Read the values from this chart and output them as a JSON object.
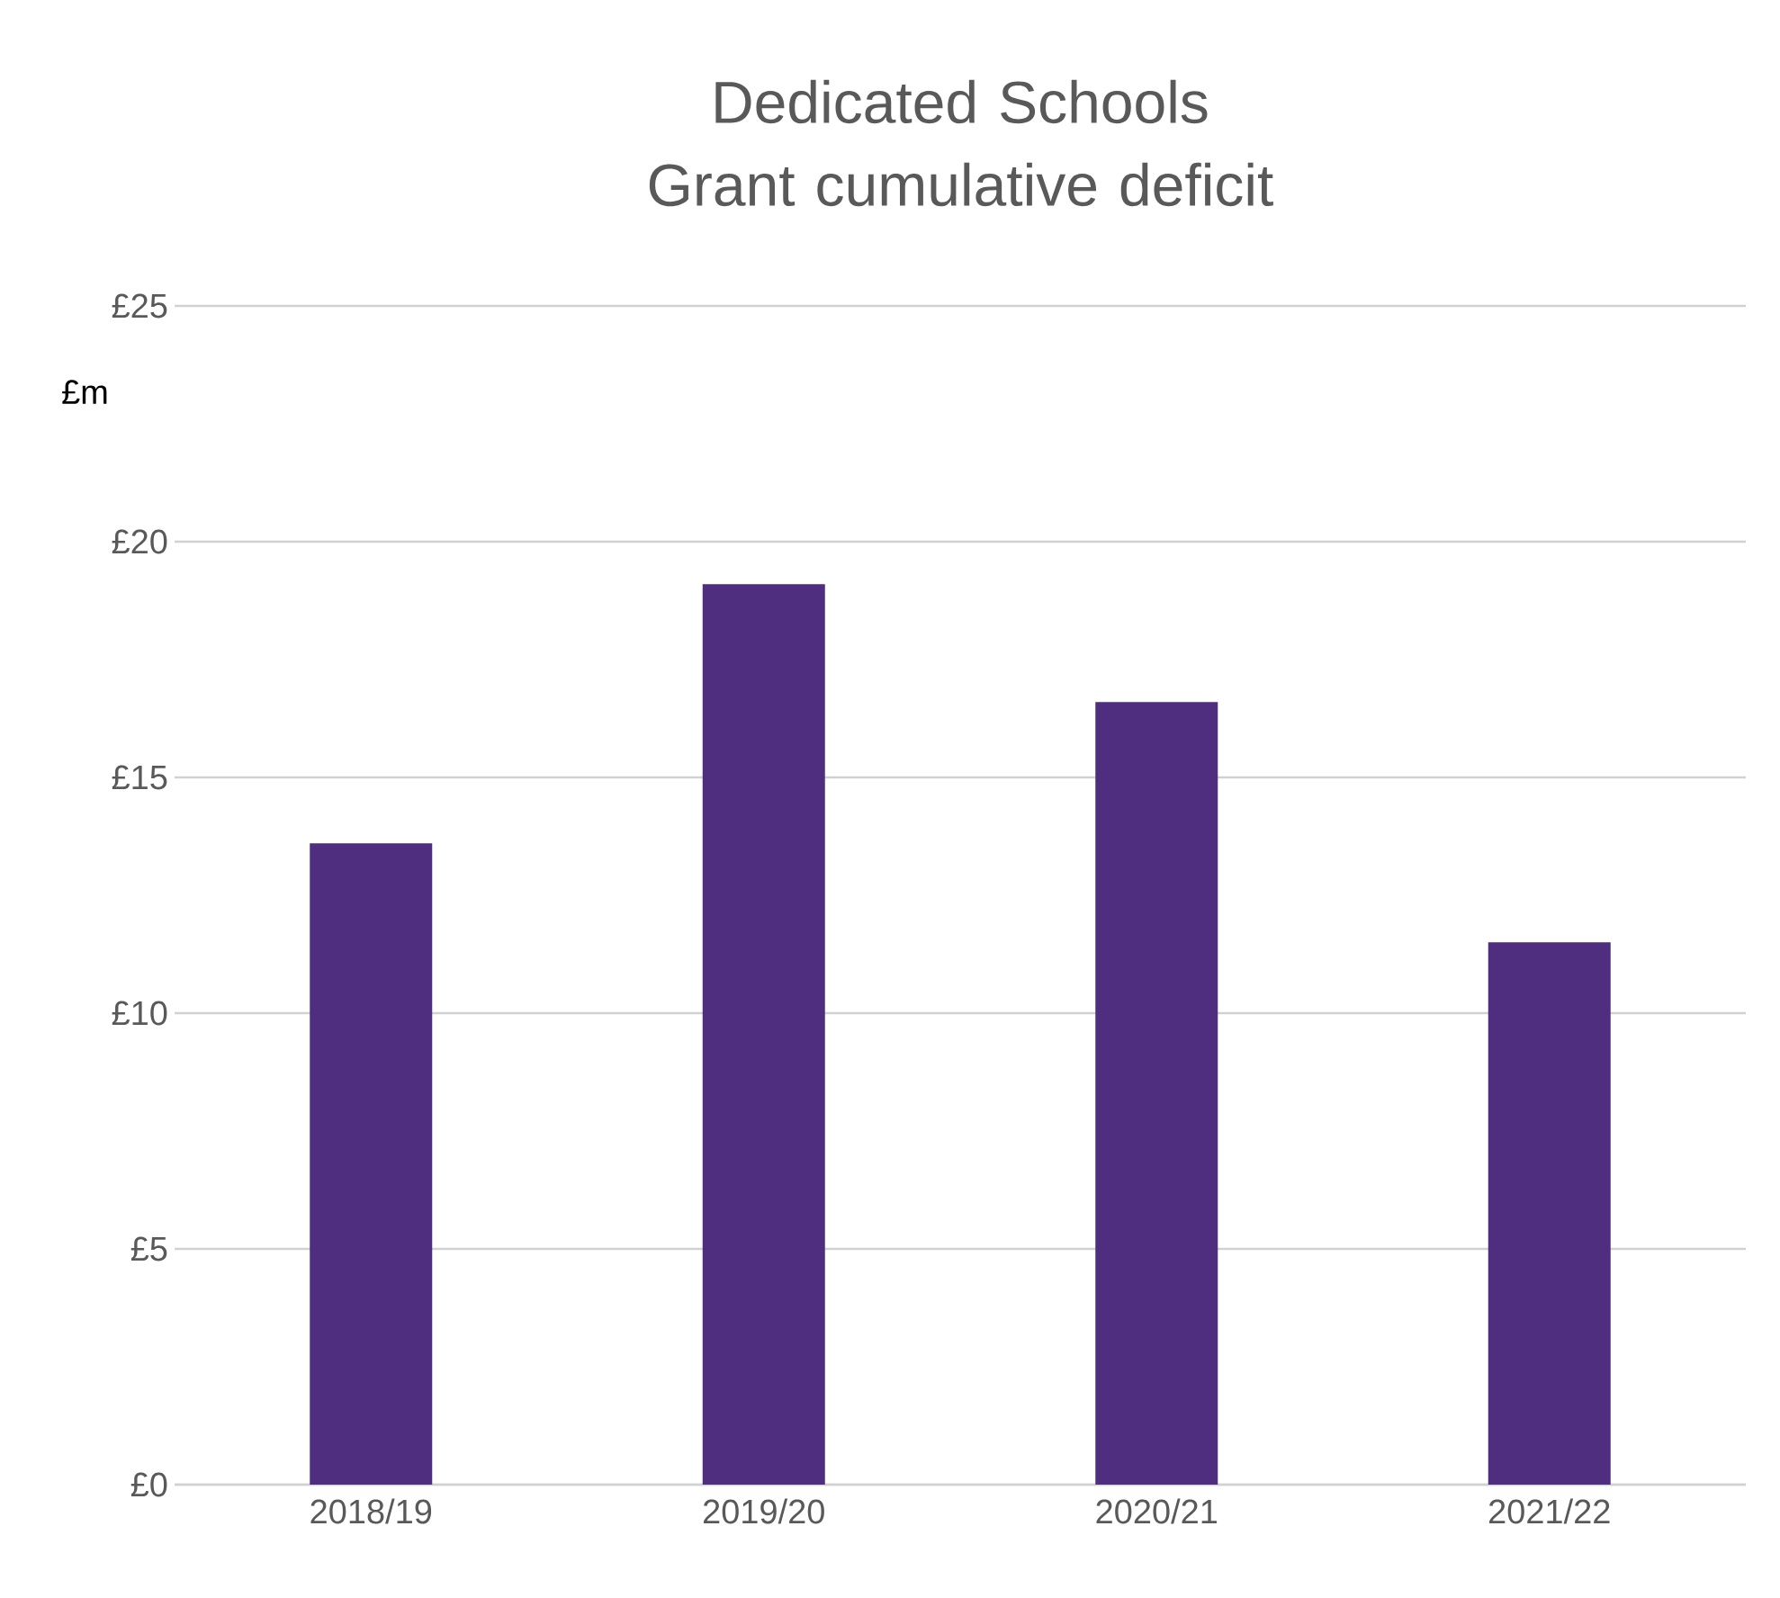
{
  "chart_data": {
    "type": "bar",
    "title": "Dedicated Schools Grant cumulative deficit",
    "ylabel": "£m",
    "categories": [
      "2018/19",
      "2019/20",
      "2020/21",
      "2021/22"
    ],
    "values": [
      13.6,
      19.1,
      16.6,
      11.5
    ],
    "color": "#4f2d7f",
    "ylim": [
      0,
      25
    ],
    "yticks": [
      {
        "value": 0,
        "label": "£0"
      },
      {
        "value": 5,
        "label": "£5"
      },
      {
        "value": 10,
        "label": "£10"
      },
      {
        "value": 15,
        "label": "£15"
      },
      {
        "value": 20,
        "label": "£20"
      },
      {
        "value": 25,
        "label": "£25"
      }
    ],
    "grid": "y"
  }
}
